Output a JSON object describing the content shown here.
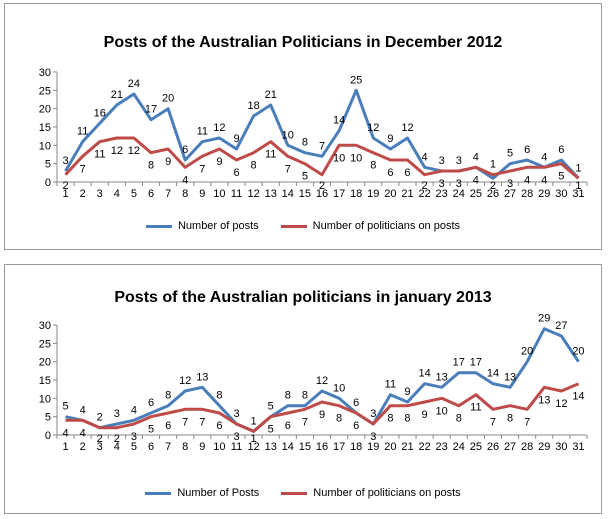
{
  "charts": [
    {
      "title": "Posts of the Australian Politicians in December 2012",
      "legend": [
        "Number of posts",
        "Number of politicians on posts"
      ]
    },
    {
      "title": "Posts of the Australian politicians in january 2013",
      "legend": [
        "Number of Posts",
        "Number of politicians on posts"
      ]
    }
  ],
  "colors": {
    "series1": "#4a7ebb",
    "series2": "#be4b48"
  },
  "chart_data": [
    {
      "type": "line",
      "title": "Posts of the Australian Politicians in December 2012",
      "x": [
        1,
        2,
        3,
        4,
        5,
        6,
        7,
        8,
        9,
        10,
        11,
        12,
        13,
        14,
        15,
        16,
        17,
        18,
        19,
        20,
        21,
        22,
        23,
        24,
        25,
        26,
        27,
        28,
        29,
        30,
        31
      ],
      "ylim": [
        0,
        30
      ],
      "yticks": [
        0,
        5,
        10,
        15,
        20,
        25,
        30
      ],
      "grid": false,
      "legend_position": "bottom",
      "series": [
        {
          "name": "Number of posts",
          "values": [
            3,
            11,
            16,
            21,
            24,
            17,
            20,
            6,
            11,
            12,
            9,
            18,
            21,
            10,
            8,
            7,
            14,
            25,
            12,
            9,
            12,
            4,
            3,
            3,
            4,
            1,
            5,
            6,
            4,
            6,
            1
          ]
        },
        {
          "name": "Number of politicians on posts",
          "values": [
            2,
            7,
            11,
            12,
            12,
            8,
            9,
            4,
            7,
            9,
            6,
            8,
            11,
            7,
            5,
            2,
            10,
            10,
            8,
            6,
            6,
            2,
            3,
            3,
            4,
            2,
            3,
            4,
            4,
            5,
            1
          ]
        }
      ]
    },
    {
      "type": "line",
      "title": "Posts of the Australian politicians in january 2013",
      "x": [
        1,
        2,
        3,
        4,
        5,
        6,
        7,
        8,
        9,
        10,
        11,
        12,
        13,
        14,
        15,
        16,
        17,
        18,
        19,
        20,
        21,
        22,
        23,
        24,
        25,
        26,
        27,
        28,
        29,
        30,
        31
      ],
      "ylim": [
        0,
        30
      ],
      "yticks": [
        0,
        5,
        10,
        15,
        20,
        25,
        30
      ],
      "grid": false,
      "legend_position": "bottom",
      "series": [
        {
          "name": "Number of Posts",
          "values": [
            5,
            4,
            2,
            3,
            4,
            6,
            8,
            12,
            13,
            8,
            3,
            1,
            5,
            8,
            8,
            12,
            10,
            6,
            3,
            11,
            9,
            14,
            13,
            17,
            17,
            14,
            13,
            20,
            29,
            27,
            20
          ]
        },
        {
          "name": "Number of politicians on posts",
          "values": [
            4,
            4,
            2,
            2,
            3,
            5,
            6,
            7,
            7,
            6,
            3,
            1,
            5,
            6,
            7,
            9,
            8,
            6,
            3,
            8,
            8,
            9,
            10,
            8,
            11,
            7,
            8,
            7,
            13,
            12,
            14
          ]
        }
      ]
    }
  ]
}
